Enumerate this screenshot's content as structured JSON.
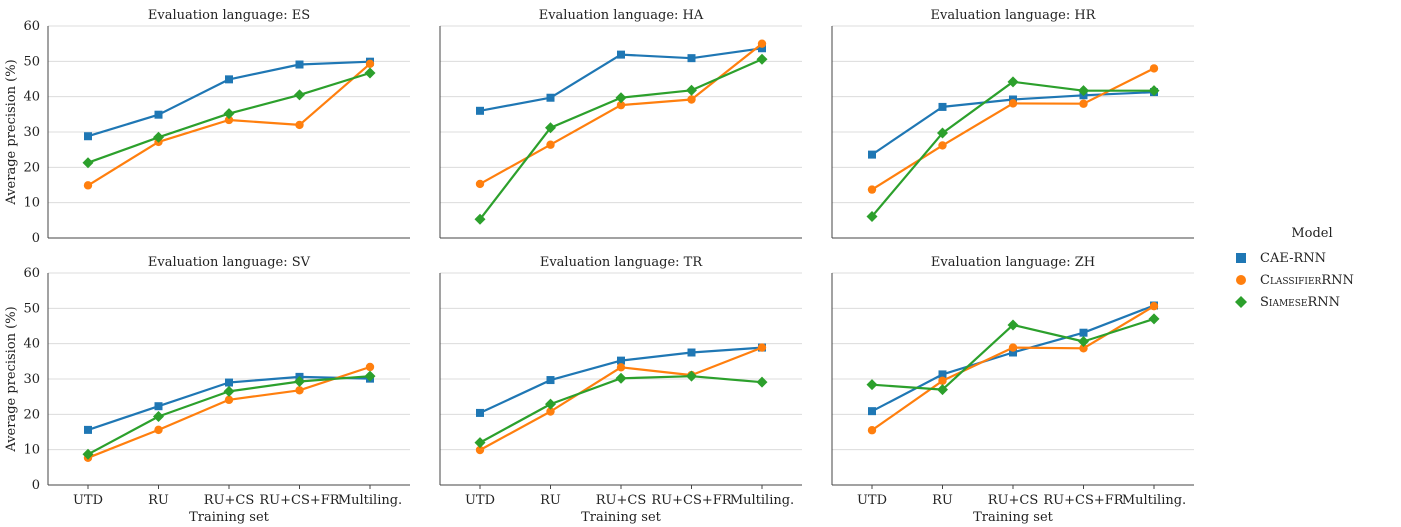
{
  "chart_data": {
    "type": "line",
    "categories": [
      "UTD",
      "RU",
      "RU+CS",
      "RU+CS+FR",
      "Multiling."
    ],
    "xlabel": "Training set",
    "ylabel": "Average precision (%)",
    "ylim": [
      0,
      60
    ],
    "yticks": [
      0,
      10,
      20,
      30,
      40,
      50,
      60
    ],
    "grid": "horizontal",
    "legend_title": "Model",
    "legend_position": "right",
    "series_styles": [
      {
        "name": "CAE-RNN",
        "color": "#1f77b4",
        "marker": "square"
      },
      {
        "name": "ClassifierRNN",
        "color": "#ff7f0e",
        "marker": "circle"
      },
      {
        "name": "SiameseRNN",
        "color": "#2ca02c",
        "marker": "diamond"
      }
    ],
    "panels": [
      {
        "title": "Evaluation language: ES",
        "series": [
          {
            "name": "CAE-RNN",
            "values": [
              28.8,
              34.9,
              44.9,
              49.1,
              49.9
            ]
          },
          {
            "name": "ClassifierRNN",
            "values": [
              14.9,
              27.2,
              33.4,
              32.0,
              49.3
            ]
          },
          {
            "name": "SiameseRNN",
            "values": [
              21.3,
              28.5,
              35.2,
              40.5,
              46.7
            ]
          }
        ]
      },
      {
        "title": "Evaluation language: HA",
        "series": [
          {
            "name": "CAE-RNN",
            "values": [
              36.0,
              39.7,
              51.9,
              50.9,
              53.7
            ]
          },
          {
            "name": "ClassifierRNN",
            "values": [
              15.3,
              26.4,
              37.6,
              39.2,
              55.0
            ]
          },
          {
            "name": "SiameseRNN",
            "values": [
              5.3,
              31.2,
              39.7,
              41.8,
              50.6
            ]
          }
        ]
      },
      {
        "title": "Evaluation language: HR",
        "series": [
          {
            "name": "CAE-RNN",
            "values": [
              23.6,
              37.1,
              39.2,
              40.4,
              41.3
            ]
          },
          {
            "name": "ClassifierRNN",
            "values": [
              13.7,
              26.2,
              38.1,
              38.0,
              48.0
            ]
          },
          {
            "name": "SiameseRNN",
            "values": [
              6.1,
              29.7,
              44.2,
              41.7,
              41.7
            ]
          }
        ]
      },
      {
        "title": "Evaluation language: SV",
        "series": [
          {
            "name": "CAE-RNN",
            "values": [
              15.6,
              22.3,
              29.0,
              30.6,
              30.1
            ]
          },
          {
            "name": "ClassifierRNN",
            "values": [
              7.7,
              15.6,
              24.1,
              26.8,
              33.4
            ]
          },
          {
            "name": "SiameseRNN",
            "values": [
              8.7,
              19.4,
              26.5,
              29.3,
              30.8
            ]
          }
        ]
      },
      {
        "title": "Evaluation language: TR",
        "series": [
          {
            "name": "CAE-RNN",
            "values": [
              20.4,
              29.7,
              35.2,
              37.5,
              38.9
            ]
          },
          {
            "name": "ClassifierRNN",
            "values": [
              9.9,
              20.8,
              33.3,
              31.1,
              38.9
            ]
          },
          {
            "name": "SiameseRNN",
            "values": [
              12.0,
              22.9,
              30.2,
              30.8,
              29.1
            ]
          }
        ]
      },
      {
        "title": "Evaluation language: ZH",
        "series": [
          {
            "name": "CAE-RNN",
            "values": [
              20.9,
              31.3,
              37.5,
              43.1,
              50.8
            ]
          },
          {
            "name": "ClassifierRNN",
            "values": [
              15.5,
              29.5,
              38.9,
              38.7,
              50.6
            ]
          },
          {
            "name": "SiameseRNN",
            "values": [
              28.4,
              27.0,
              45.3,
              40.6,
              47.0
            ]
          }
        ]
      }
    ]
  },
  "legend": {
    "title": "Model",
    "items": [
      {
        "label_main": "CAE-RNN",
        "label_sc": "",
        "label_tail": "",
        "color": "#1f77b4",
        "marker": "square"
      },
      {
        "label_main": "C",
        "label_sc": "lassifier",
        "label_tail": "RNN",
        "color": "#ff7f0e",
        "marker": "circle"
      },
      {
        "label_main": "S",
        "label_sc": "iamese",
        "label_tail": "RNN",
        "color": "#2ca02c",
        "marker": "diamond"
      }
    ]
  }
}
